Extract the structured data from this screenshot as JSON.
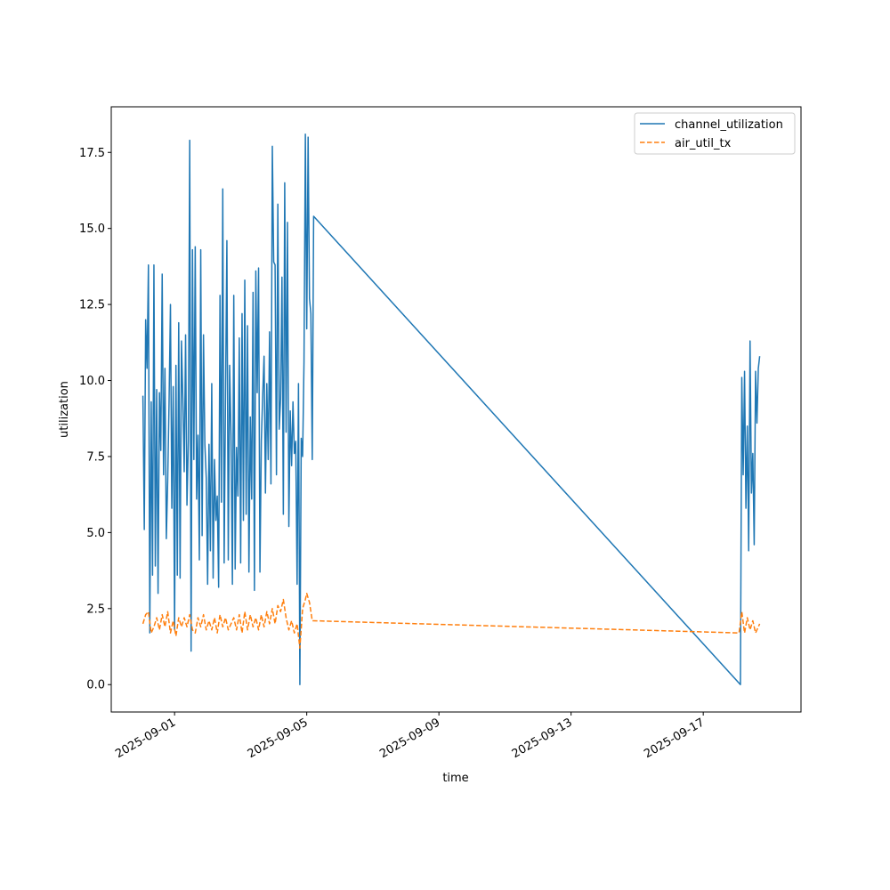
{
  "chart_data": {
    "type": "line",
    "title": "",
    "xlabel": "time",
    "ylabel": "utilization",
    "xlim": [
      "2025-08-30T02:00",
      "2025-09-19T23:00"
    ],
    "ylim": [
      -0.9,
      19.0
    ],
    "x_ticks": [
      "2025-09-01",
      "2025-09-05",
      "2025-09-09",
      "2025-09-13",
      "2025-09-17"
    ],
    "y_ticks": [
      0.0,
      2.5,
      5.0,
      7.5,
      10.0,
      12.5,
      15.0,
      17.5
    ],
    "y_tick_labels": [
      "0.0",
      "2.5",
      "5.0",
      "7.5",
      "10.0",
      "12.5",
      "15.0",
      "17.5"
    ],
    "grid": false,
    "legend_position": "top-right",
    "series": [
      {
        "name": "channel_utilization",
        "color": "#1f77b4",
        "dash": "solid",
        "points": [
          [
            "2025-08-31T01:00",
            9.5
          ],
          [
            "2025-08-31T02:00",
            5.1
          ],
          [
            "2025-08-31T03:00",
            12.0
          ],
          [
            "2025-08-31T04:00",
            10.4
          ],
          [
            "2025-08-31T05:00",
            13.8
          ],
          [
            "2025-08-31T06:00",
            1.7
          ],
          [
            "2025-08-31T07:00",
            9.3
          ],
          [
            "2025-08-31T08:00",
            3.6
          ],
          [
            "2025-08-31T09:00",
            13.8
          ],
          [
            "2025-08-31T10:00",
            3.9
          ],
          [
            "2025-08-31T11:00",
            9.7
          ],
          [
            "2025-08-31T12:00",
            3.0
          ],
          [
            "2025-08-31T13:00",
            9.6
          ],
          [
            "2025-08-31T14:00",
            7.7
          ],
          [
            "2025-08-31T15:00",
            13.5
          ],
          [
            "2025-08-31T16:00",
            6.9
          ],
          [
            "2025-08-31T17:00",
            10.4
          ],
          [
            "2025-08-31T18:00",
            4.8
          ],
          [
            "2025-08-31T19:00",
            6.7
          ],
          [
            "2025-08-31T20:00",
            9.3
          ],
          [
            "2025-08-31T21:00",
            12.5
          ],
          [
            "2025-08-31T22:00",
            5.8
          ],
          [
            "2025-08-31T23:00",
            9.8
          ],
          [
            "2025-09-01T00:00",
            1.8
          ],
          [
            "2025-09-01T01:00",
            10.5
          ],
          [
            "2025-09-01T02:00",
            3.6
          ],
          [
            "2025-09-01T03:00",
            11.9
          ],
          [
            "2025-09-01T04:00",
            3.5
          ],
          [
            "2025-09-01T05:00",
            11.3
          ],
          [
            "2025-09-01T06:00",
            9.4
          ],
          [
            "2025-09-01T07:00",
            7.0
          ],
          [
            "2025-09-01T08:00",
            11.5
          ],
          [
            "2025-09-01T09:00",
            5.9
          ],
          [
            "2025-09-01T10:00",
            8.0
          ],
          [
            "2025-09-01T11:00",
            17.9
          ],
          [
            "2025-09-01T12:00",
            1.1
          ],
          [
            "2025-09-01T13:00",
            14.3
          ],
          [
            "2025-09-01T14:00",
            7.4
          ],
          [
            "2025-09-01T15:00",
            14.4
          ],
          [
            "2025-09-01T16:00",
            6.1
          ],
          [
            "2025-09-01T17:00",
            8.2
          ],
          [
            "2025-09-01T18:00",
            4.1
          ],
          [
            "2025-09-01T19:00",
            14.3
          ],
          [
            "2025-09-01T20:00",
            4.9
          ],
          [
            "2025-09-01T21:00",
            11.5
          ],
          [
            "2025-09-01T22:00",
            7.9
          ],
          [
            "2025-09-01T23:00",
            6.8
          ],
          [
            "2025-09-02T00:00",
            3.3
          ],
          [
            "2025-09-02T01:00",
            7.9
          ],
          [
            "2025-09-02T02:00",
            4.4
          ],
          [
            "2025-09-02T03:00",
            9.9
          ],
          [
            "2025-09-02T04:00",
            3.5
          ],
          [
            "2025-09-02T05:00",
            7.4
          ],
          [
            "2025-09-02T06:00",
            5.4
          ],
          [
            "2025-09-02T07:00",
            6.2
          ],
          [
            "2025-09-02T08:00",
            3.2
          ],
          [
            "2025-09-02T09:00",
            12.8
          ],
          [
            "2025-09-02T10:00",
            6.0
          ],
          [
            "2025-09-02T11:00",
            16.3
          ],
          [
            "2025-09-02T12:00",
            4.0
          ],
          [
            "2025-09-02T13:00",
            9.5
          ],
          [
            "2025-09-02T14:00",
            14.6
          ],
          [
            "2025-09-02T15:00",
            4.1
          ],
          [
            "2025-09-02T16:00",
            10.5
          ],
          [
            "2025-09-02T17:00",
            8.2
          ],
          [
            "2025-09-02T18:00",
            3.3
          ],
          [
            "2025-09-02T19:00",
            12.8
          ],
          [
            "2025-09-02T20:00",
            3.8
          ],
          [
            "2025-09-02T21:00",
            7.8
          ],
          [
            "2025-09-02T22:00",
            6.2
          ],
          [
            "2025-09-02T23:00",
            11.4
          ],
          [
            "2025-09-03T00:00",
            4.0
          ],
          [
            "2025-09-03T01:00",
            12.2
          ],
          [
            "2025-09-03T02:00",
            5.4
          ],
          [
            "2025-09-03T03:00",
            13.3
          ],
          [
            "2025-09-03T04:00",
            5.6
          ],
          [
            "2025-09-03T05:00",
            11.8
          ],
          [
            "2025-09-03T06:00",
            3.7
          ],
          [
            "2025-09-03T07:00",
            8.8
          ],
          [
            "2025-09-03T08:00",
            6.1
          ],
          [
            "2025-09-03T09:00",
            12.9
          ],
          [
            "2025-09-03T10:00",
            3.1
          ],
          [
            "2025-09-03T11:00",
            13.6
          ],
          [
            "2025-09-03T12:00",
            9.6
          ],
          [
            "2025-09-03T13:00",
            13.7
          ],
          [
            "2025-09-03T14:00",
            3.7
          ],
          [
            "2025-09-03T15:00",
            8.0
          ],
          [
            "2025-09-03T16:00",
            9.5
          ],
          [
            "2025-09-03T17:00",
            10.8
          ],
          [
            "2025-09-03T18:00",
            6.3
          ],
          [
            "2025-09-03T19:00",
            9.9
          ],
          [
            "2025-09-03T20:00",
            7.4
          ],
          [
            "2025-09-03T21:00",
            11.6
          ],
          [
            "2025-09-03T22:00",
            6.6
          ],
          [
            "2025-09-03T23:00",
            17.7
          ],
          [
            "2025-09-04T00:00",
            13.9
          ],
          [
            "2025-09-04T01:00",
            13.8
          ],
          [
            "2025-09-04T02:00",
            6.9
          ],
          [
            "2025-09-04T03:00",
            15.8
          ],
          [
            "2025-09-04T04:00",
            8.4
          ],
          [
            "2025-09-04T05:00",
            9.4
          ],
          [
            "2025-09-04T06:00",
            13.4
          ],
          [
            "2025-09-04T07:00",
            5.6
          ],
          [
            "2025-09-04T08:00",
            16.5
          ],
          [
            "2025-09-04T09:00",
            8.3
          ],
          [
            "2025-09-04T10:00",
            15.2
          ],
          [
            "2025-09-04T11:00",
            5.2
          ],
          [
            "2025-09-04T12:00",
            9.0
          ],
          [
            "2025-09-04T13:00",
            7.2
          ],
          [
            "2025-09-04T14:00",
            9.3
          ],
          [
            "2025-09-04T15:00",
            7.6
          ],
          [
            "2025-09-04T16:00",
            8.0
          ],
          [
            "2025-09-04T17:00",
            3.3
          ],
          [
            "2025-09-04T18:00",
            9.9
          ],
          [
            "2025-09-04T19:00",
            0.0
          ],
          [
            "2025-09-04T20:00",
            8.1
          ],
          [
            "2025-09-04T21:00",
            7.5
          ],
          [
            "2025-09-04T22:00",
            10.6
          ],
          [
            "2025-09-04T23:00",
            18.1
          ],
          [
            "2025-09-05T00:00",
            11.7
          ],
          [
            "2025-09-05T01:00",
            18.0
          ],
          [
            "2025-09-05T02:00",
            12.7
          ],
          [
            "2025-09-05T03:00",
            12.2
          ],
          [
            "2025-09-05T04:00",
            7.4
          ],
          [
            "2025-09-05T05:00",
            15.4
          ],
          [
            "2025-09-18T03:00",
            0.0
          ],
          [
            "2025-09-18T04:00",
            10.1
          ],
          [
            "2025-09-18T05:00",
            6.9
          ],
          [
            "2025-09-18T06:00",
            10.3
          ],
          [
            "2025-09-18T07:00",
            5.8
          ],
          [
            "2025-09-18T08:00",
            8.5
          ],
          [
            "2025-09-18T09:00",
            4.4
          ],
          [
            "2025-09-18T10:00",
            11.3
          ],
          [
            "2025-09-18T11:00",
            6.3
          ],
          [
            "2025-09-18T12:00",
            7.6
          ],
          [
            "2025-09-18T13:00",
            4.6
          ],
          [
            "2025-09-18T14:00",
            10.3
          ],
          [
            "2025-09-18T15:00",
            8.6
          ],
          [
            "2025-09-18T16:00",
            10.4
          ],
          [
            "2025-09-18T17:00",
            10.8
          ]
        ]
      },
      {
        "name": "air_util_tx",
        "color": "#ff7f0e",
        "dash": "dashed",
        "points": [
          [
            "2025-08-31T01:00",
            2.0
          ],
          [
            "2025-08-31T03:00",
            2.3
          ],
          [
            "2025-08-31T05:00",
            2.4
          ],
          [
            "2025-08-31T07:00",
            1.7
          ],
          [
            "2025-08-31T09:00",
            1.9
          ],
          [
            "2025-08-31T11:00",
            2.2
          ],
          [
            "2025-08-31T13:00",
            1.8
          ],
          [
            "2025-08-31T15:00",
            2.3
          ],
          [
            "2025-08-31T17:00",
            1.9
          ],
          [
            "2025-08-31T19:00",
            2.4
          ],
          [
            "2025-08-31T21:00",
            1.7
          ],
          [
            "2025-08-31T23:00",
            2.1
          ],
          [
            "2025-09-01T01:00",
            1.6
          ],
          [
            "2025-09-01T03:00",
            2.2
          ],
          [
            "2025-09-01T05:00",
            1.9
          ],
          [
            "2025-09-01T07:00",
            2.2
          ],
          [
            "2025-09-01T09:00",
            1.9
          ],
          [
            "2025-09-01T11:00",
            2.3
          ],
          [
            "2025-09-01T13:00",
            1.8
          ],
          [
            "2025-09-01T15:00",
            1.7
          ],
          [
            "2025-09-01T17:00",
            2.2
          ],
          [
            "2025-09-01T19:00",
            1.9
          ],
          [
            "2025-09-01T21:00",
            2.3
          ],
          [
            "2025-09-01T23:00",
            1.8
          ],
          [
            "2025-09-02T01:00",
            2.1
          ],
          [
            "2025-09-02T03:00",
            1.8
          ],
          [
            "2025-09-02T05:00",
            2.2
          ],
          [
            "2025-09-02T07:00",
            1.7
          ],
          [
            "2025-09-02T09:00",
            2.3
          ],
          [
            "2025-09-02T11:00",
            1.9
          ],
          [
            "2025-09-02T13:00",
            2.2
          ],
          [
            "2025-09-02T15:00",
            1.8
          ],
          [
            "2025-09-02T17:00",
            2.0
          ],
          [
            "2025-09-02T19:00",
            2.2
          ],
          [
            "2025-09-02T21:00",
            1.8
          ],
          [
            "2025-09-02T23:00",
            2.3
          ],
          [
            "2025-09-03T01:00",
            1.7
          ],
          [
            "2025-09-03T03:00",
            2.4
          ],
          [
            "2025-09-03T05:00",
            1.8
          ],
          [
            "2025-09-03T07:00",
            2.3
          ],
          [
            "2025-09-03T09:00",
            1.9
          ],
          [
            "2025-09-03T11:00",
            2.2
          ],
          [
            "2025-09-03T13:00",
            1.8
          ],
          [
            "2025-09-03T15:00",
            2.3
          ],
          [
            "2025-09-03T17:00",
            1.9
          ],
          [
            "2025-09-03T19:00",
            2.4
          ],
          [
            "2025-09-03T21:00",
            2.0
          ],
          [
            "2025-09-03T23:00",
            2.5
          ],
          [
            "2025-09-04T01:00",
            2.0
          ],
          [
            "2025-09-04T03:00",
            2.6
          ],
          [
            "2025-09-04T05:00",
            2.4
          ],
          [
            "2025-09-04T07:00",
            2.8
          ],
          [
            "2025-09-04T09:00",
            2.2
          ],
          [
            "2025-09-04T11:00",
            1.8
          ],
          [
            "2025-09-04T13:00",
            2.1
          ],
          [
            "2025-09-04T15:00",
            1.7
          ],
          [
            "2025-09-04T17:00",
            2.0
          ],
          [
            "2025-09-04T19:00",
            1.2
          ],
          [
            "2025-09-04T21:00",
            2.5
          ],
          [
            "2025-09-04T23:00",
            2.8
          ],
          [
            "2025-09-05T00:00",
            3.0
          ],
          [
            "2025-09-05T02:00",
            2.7
          ],
          [
            "2025-09-05T04:00",
            2.1
          ],
          [
            "2025-09-05T05:00",
            2.1
          ],
          [
            "2025-09-18T02:00",
            1.7
          ],
          [
            "2025-09-18T04:00",
            2.4
          ],
          [
            "2025-09-18T06:00",
            1.7
          ],
          [
            "2025-09-18T08:00",
            2.2
          ],
          [
            "2025-09-18T10:00",
            1.8
          ],
          [
            "2025-09-18T12:00",
            2.1
          ],
          [
            "2025-09-18T14:00",
            1.7
          ],
          [
            "2025-09-18T17:00",
            2.0
          ]
        ]
      }
    ]
  }
}
